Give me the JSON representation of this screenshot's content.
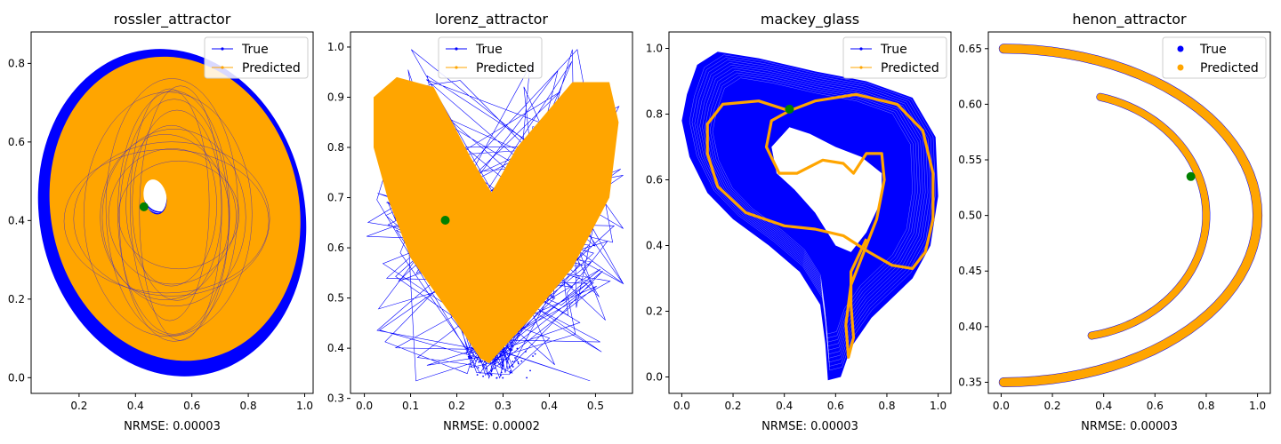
{
  "colors": {
    "true_series": "#0000ff",
    "predicted_series": "#ffa500",
    "marker": "#008000",
    "axes": "#000000",
    "background": "#ffffff"
  },
  "chart_data": [
    {
      "type": "line",
      "title": "rossler_attractor",
      "xlabel": "NRMSE: 0.00003",
      "xlim": [
        0.03,
        1.03
      ],
      "ylim": [
        -0.04,
        0.88
      ],
      "xticks": [
        0.2,
        0.4,
        0.6,
        0.8,
        1.0
      ],
      "yticks": [
        0.0,
        0.2,
        0.4,
        0.6,
        0.8
      ],
      "legend": {
        "location": "top-right",
        "style": "line",
        "entries": [
          "True",
          "Predicted"
        ]
      },
      "grid": false,
      "marker_point": [
        0.43,
        0.435
      ],
      "series": [
        {
          "name": "True",
          "shape": "ring",
          "cx": 0.53,
          "cy": 0.42,
          "rx": 0.47,
          "ry": 0.42,
          "hole": [
            0.48,
            0.48,
            0.045,
            0.055
          ]
        },
        {
          "name": "Predicted",
          "shape": "ring",
          "cx": 0.54,
          "cy": 0.43,
          "rx": 0.44,
          "ry": 0.39,
          "hole": [
            0.48,
            0.47,
            0.04,
            0.045
          ]
        }
      ]
    },
    {
      "type": "line",
      "title": "lorenz_attractor",
      "xlabel": "NRMSE: 0.00002",
      "xlim": [
        -0.03,
        0.58
      ],
      "ylim": [
        0.31,
        1.03
      ],
      "xticks": [
        0.0,
        0.1,
        0.2,
        0.3,
        0.4,
        0.5
      ],
      "yticks": [
        0.3,
        0.4,
        0.5,
        0.6,
        0.7,
        0.8,
        0.9,
        1.0
      ],
      "legend": {
        "location": "top-center",
        "style": "line",
        "entries": [
          "True",
          "Predicted"
        ]
      },
      "grid": false,
      "marker_point": [
        0.175,
        0.655
      ],
      "series": [
        {
          "name": "True",
          "shape": "butterfly"
        },
        {
          "name": "Predicted",
          "shape": "butterfly"
        }
      ]
    },
    {
      "type": "line",
      "title": "mackey_glass",
      "xlabel": "NRMSE: 0.00003",
      "xlim": [
        -0.05,
        1.05
      ],
      "ylim": [
        -0.05,
        1.05
      ],
      "xticks": [
        0.0,
        0.2,
        0.4,
        0.6,
        0.8,
        1.0
      ],
      "yticks": [
        0.0,
        0.2,
        0.4,
        0.6,
        0.8,
        1.0
      ],
      "legend": {
        "location": "top-right",
        "style": "line",
        "entries": [
          "True",
          "Predicted"
        ]
      },
      "grid": false,
      "marker_point": [
        0.42,
        0.815
      ],
      "series": [
        {
          "name": "True",
          "shape": "region"
        },
        {
          "name": "Predicted",
          "shape": "loop"
        }
      ]
    },
    {
      "type": "scatter",
      "title": "henon_attractor",
      "xlabel": "NRMSE: 0.00003",
      "xlim": [
        -0.05,
        1.05
      ],
      "ylim": [
        0.34,
        0.665
      ],
      "xticks": [
        0.0,
        0.2,
        0.4,
        0.6,
        0.8,
        1.0
      ],
      "yticks": [
        0.35,
        0.4,
        0.45,
        0.5,
        0.55,
        0.6,
        0.65
      ],
      "legend": {
        "location": "top-right",
        "style": "dot",
        "entries": [
          "True",
          "Predicted"
        ]
      },
      "grid": false,
      "marker_point": [
        0.74,
        0.535
      ],
      "series": [
        {
          "name": "True",
          "shape": "henon"
        },
        {
          "name": "Predicted",
          "shape": "henon"
        }
      ]
    }
  ]
}
